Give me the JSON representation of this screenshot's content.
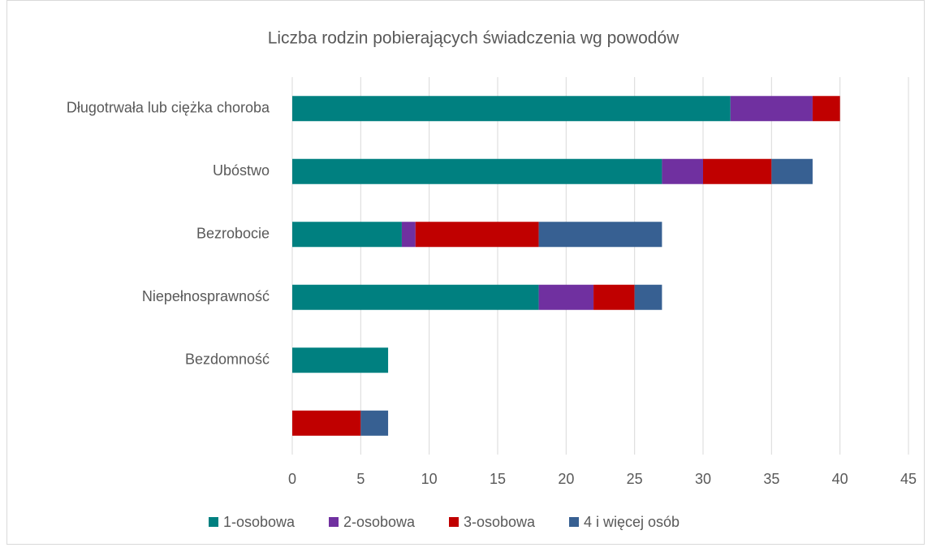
{
  "chart_data": {
    "type": "bar",
    "orientation": "horizontal",
    "stacked": true,
    "title": "Liczba rodzin pobierających świadczenia wg powodów",
    "categories": [
      "Długotrwała lub ciężka choroba",
      "Ubóstwo",
      "Bezrobocie",
      "Niepełnosprawność",
      "Bezdomność",
      null
    ],
    "series": [
      {
        "name": "1-osobowa",
        "color": "#008080",
        "values": [
          32,
          27,
          8,
          18,
          7,
          0
        ]
      },
      {
        "name": "2-osobowa",
        "color": "#7030a0",
        "values": [
          6,
          3,
          1,
          4,
          0,
          0
        ]
      },
      {
        "name": "3-osobowa",
        "color": "#c00000",
        "values": [
          2,
          5,
          9,
          3,
          0,
          5
        ]
      },
      {
        "name": "4 i więcej osób",
        "color": "#376092",
        "values": [
          0,
          3,
          9,
          2,
          0,
          2
        ]
      }
    ],
    "xlim": [
      0,
      45
    ],
    "xticks": [
      0,
      5,
      10,
      15,
      20,
      25,
      30,
      35,
      40,
      45
    ],
    "grid": true,
    "legend": "bottom"
  }
}
